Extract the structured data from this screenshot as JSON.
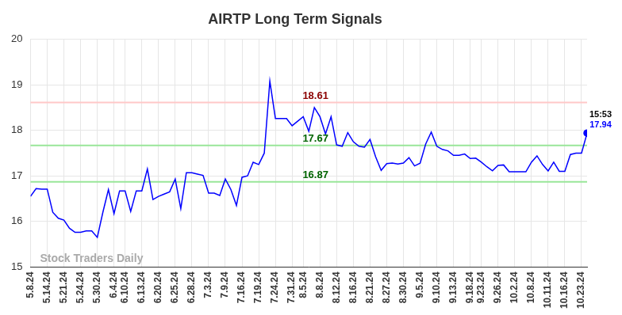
{
  "chart_data": {
    "type": "line",
    "title": "AIRTP Long Term Signals",
    "categories": [
      "5.8.24",
      null,
      null,
      "5.14.24",
      null,
      null,
      "5.21.24",
      null,
      null,
      "5.24.24",
      null,
      null,
      "5.30.24",
      null,
      null,
      "6.4.24",
      null,
      "6.10.24",
      null,
      null,
      "6.13.24",
      null,
      null,
      "6.20.24",
      null,
      null,
      "6.25.24",
      null,
      null,
      "6.28.24",
      null,
      null,
      "7.3.24",
      null,
      null,
      "7.9.24",
      null,
      null,
      "7.16.24",
      null,
      null,
      "7.19.24",
      null,
      null,
      "7.24.24",
      null,
      null,
      "7.31.24",
      null,
      "8.5.24",
      null,
      null,
      "8.8.24",
      null,
      null,
      "8.12.24",
      null,
      null,
      "8.16.24",
      null,
      null,
      "8.21.24",
      null,
      null,
      "8.27.24",
      null,
      null,
      "8.30.24",
      null,
      null,
      "9.5.24",
      null,
      null,
      "9.10.24",
      null,
      null,
      "9.13.24",
      null,
      null,
      "9.18.24",
      null,
      "9.23.24",
      null,
      null,
      "9.26.24",
      null,
      null,
      "10.2.24",
      null,
      null,
      "10.8.24",
      null,
      null,
      "10.11.24",
      null,
      null,
      "10.16.24",
      null,
      null,
      "10.23.24",
      null
    ],
    "values": [
      16.55,
      16.72,
      16.71,
      16.71,
      16.2,
      16.07,
      16.03,
      15.85,
      15.76,
      15.76,
      15.79,
      15.79,
      15.65,
      16.2,
      16.7,
      16.17,
      16.67,
      16.67,
      16.22,
      16.67,
      16.67,
      17.15,
      16.48,
      16.55,
      16.6,
      16.65,
      16.93,
      16.28,
      17.07,
      17.07,
      17.04,
      17.01,
      16.62,
      16.62,
      16.57,
      16.93,
      16.7,
      16.35,
      16.97,
      17.0,
      17.3,
      17.25,
      17.5,
      19.08,
      18.26,
      18.26,
      18.26,
      18.1,
      18.2,
      18.3,
      17.98,
      18.5,
      18.3,
      17.92,
      18.3,
      17.68,
      17.65,
      17.95,
      17.75,
      17.65,
      17.63,
      17.8,
      17.42,
      17.12,
      17.27,
      17.28,
      17.26,
      17.28,
      17.4,
      17.22,
      17.28,
      17.7,
      17.96,
      17.65,
      17.58,
      17.55,
      17.45,
      17.45,
      17.48,
      17.38,
      17.39,
      17.3,
      17.2,
      17.11,
      17.23,
      17.24,
      17.09,
      17.09,
      17.09,
      17.09,
      17.3,
      17.44,
      17.25,
      17.11,
      17.3,
      17.1,
      17.1,
      17.47,
      17.5,
      17.5,
      17.94
    ],
    "color": "#0000ff",
    "ylim": [
      15,
      20
    ],
    "yticks": [
      15,
      16,
      17,
      18,
      19,
      20
    ],
    "grid": true,
    "reference_lines": [
      {
        "value": 18.61,
        "label": "18.61",
        "color": "#ffc8c8",
        "label_color": "#8b0000"
      },
      {
        "value": 17.67,
        "label": "17.67",
        "color": "#99e699",
        "label_color": "#006400"
      },
      {
        "value": 16.87,
        "label": "16.87",
        "color": "#99e699",
        "label_color": "#006400"
      }
    ],
    "last_point": {
      "time": "15:53",
      "value": 17.94
    },
    "watermark": "Stock Traders Daily"
  }
}
